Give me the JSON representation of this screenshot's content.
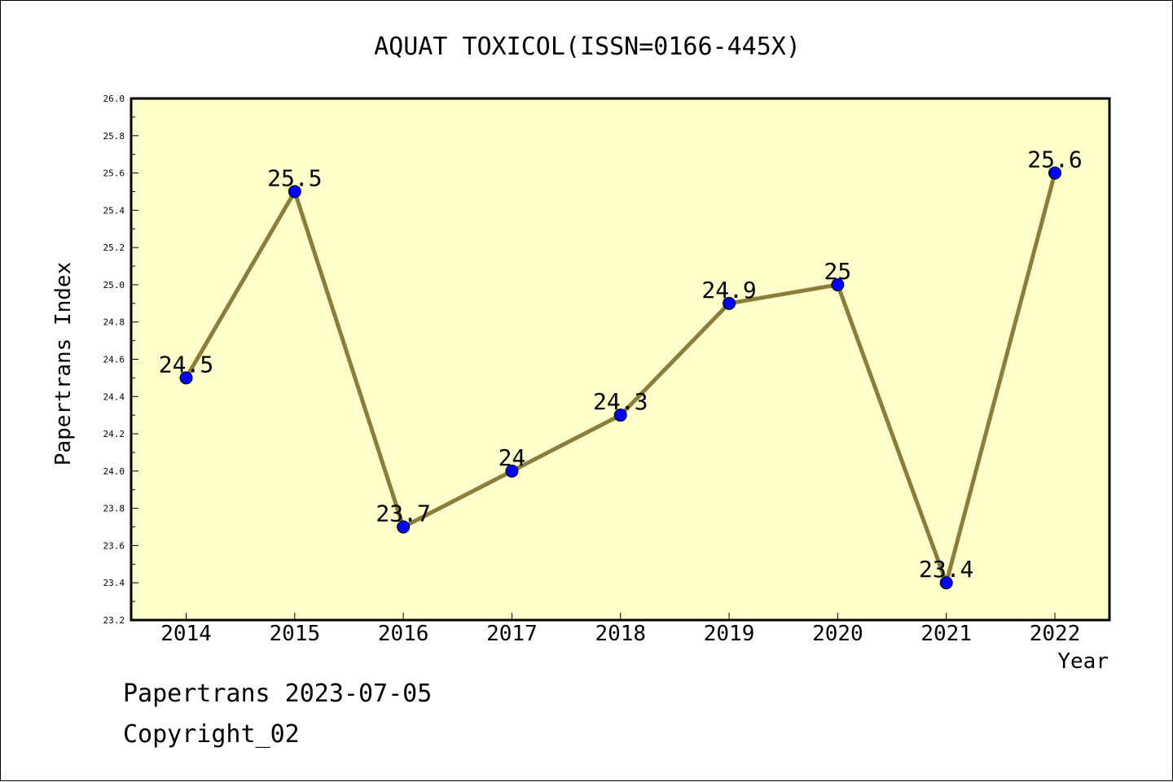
{
  "chart_data": {
    "type": "line",
    "title": "AQUAT TOXICOL(ISSN=0166-445X)",
    "xlabel": "Year",
    "ylabel": "Papertrans Index",
    "categories": [
      "2014",
      "2015",
      "2016",
      "2017",
      "2018",
      "2019",
      "2020",
      "2021",
      "2022"
    ],
    "series": [
      {
        "values": [
          24.5,
          25.5,
          23.7,
          24.0,
          24.3,
          24.9,
          25.0,
          23.4,
          25.6
        ],
        "labels": [
          "24.5",
          "25.5",
          "23.7",
          "24",
          "24.3",
          "24.9",
          "25",
          "23.4",
          "25.6"
        ]
      }
    ],
    "ylim": [
      23.2,
      26.0
    ],
    "yticks": [
      "23.2",
      "23.4",
      "23.6",
      "23.8",
      "24.0",
      "24.2",
      "24.4",
      "24.6",
      "24.8",
      "25.0",
      "25.2",
      "25.4",
      "25.6",
      "25.8",
      "26.0"
    ],
    "grid": false,
    "colors": {
      "plot_background": "#ffffcc",
      "line": "#8b7d3a",
      "marker": "#0000ff"
    }
  },
  "footer": {
    "line1": "Papertrans 2023-07-05",
    "line2": "Copyright_02"
  }
}
